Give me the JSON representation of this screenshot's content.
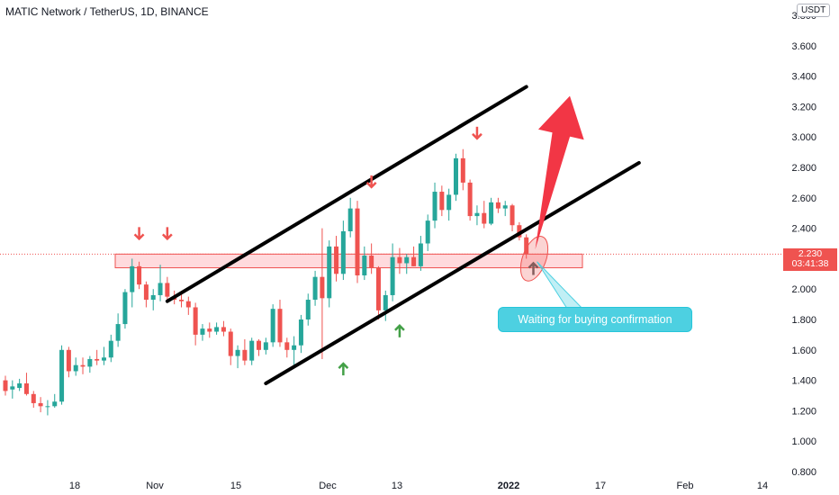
{
  "header": {
    "symbol_title": "MATIC Network / TetherUS, 1D, BINANCE",
    "unit_badge": "USDT"
  },
  "price_tag": {
    "price": "2.230",
    "countdown": "03:41:38"
  },
  "annotation": {
    "callout_text": "Waiting for buying confirmation"
  },
  "colors": {
    "up": "#26a69a",
    "down": "#ef5350",
    "channel": "#000000",
    "zone_fill": "#ffcdd2",
    "callout": "#4dd0e1",
    "big_arrow": "#f23645"
  },
  "chart_data": {
    "type": "candlestick",
    "ylim": [
      0.8,
      4.0
    ],
    "y_ticks": [
      "3.800",
      "3.600",
      "3.400",
      "3.200",
      "3.000",
      "2.800",
      "2.600",
      "2.400",
      "2.200",
      "2.000",
      "1.800",
      "1.600",
      "1.400",
      "1.200",
      "1.000",
      "0.800"
    ],
    "x_ticks": [
      "18",
      "Nov",
      "15",
      "Dec",
      "13",
      "2022",
      "17",
      "Feb",
      "14"
    ],
    "resistance_zone": [
      2.14,
      2.23
    ],
    "channel_upper": {
      "from": {
        "bar": 23,
        "price": 1.92
      },
      "to": {
        "bar": 74,
        "price": 3.33
      }
    },
    "channel_lower": {
      "from": {
        "bar": 37,
        "price": 1.38
      },
      "to": {
        "bar": 90,
        "price": 2.83
      }
    },
    "projection_target": 3.27,
    "ohlc": [
      [
        1.4,
        1.43,
        1.3,
        1.33
      ],
      [
        1.34,
        1.4,
        1.28,
        1.36
      ],
      [
        1.35,
        1.41,
        1.33,
        1.38
      ],
      [
        1.38,
        1.45,
        1.3,
        1.31
      ],
      [
        1.31,
        1.33,
        1.22,
        1.25
      ],
      [
        1.25,
        1.29,
        1.19,
        1.23
      ],
      [
        1.23,
        1.27,
        1.17,
        1.23
      ],
      [
        1.23,
        1.31,
        1.22,
        1.26
      ],
      [
        1.26,
        1.63,
        1.24,
        1.6
      ],
      [
        1.6,
        1.62,
        1.42,
        1.46
      ],
      [
        1.46,
        1.55,
        1.43,
        1.5
      ],
      [
        1.5,
        1.55,
        1.44,
        1.49
      ],
      [
        1.49,
        1.56,
        1.45,
        1.54
      ],
      [
        1.54,
        1.6,
        1.5,
        1.53
      ],
      [
        1.53,
        1.62,
        1.5,
        1.55
      ],
      [
        1.55,
        1.7,
        1.52,
        1.66
      ],
      [
        1.66,
        1.84,
        1.62,
        1.77
      ],
      [
        1.77,
        2.0,
        1.74,
        1.98
      ],
      [
        1.98,
        2.2,
        1.88,
        2.15
      ],
      [
        2.15,
        2.18,
        2.0,
        2.03
      ],
      [
        2.03,
        2.05,
        1.88,
        1.93
      ],
      [
        1.93,
        2.0,
        1.86,
        1.96
      ],
      [
        1.96,
        2.16,
        1.92,
        2.04
      ],
      [
        2.04,
        2.08,
        1.92,
        1.95
      ],
      [
        1.95,
        1.99,
        1.9,
        1.93
      ],
      [
        1.93,
        1.97,
        1.88,
        1.92
      ],
      [
        1.92,
        1.95,
        1.83,
        1.88
      ],
      [
        1.88,
        1.91,
        1.63,
        1.7
      ],
      [
        1.7,
        1.77,
        1.66,
        1.74
      ],
      [
        1.74,
        1.78,
        1.68,
        1.72
      ],
      [
        1.72,
        1.78,
        1.7,
        1.75
      ],
      [
        1.75,
        1.79,
        1.69,
        1.72
      ],
      [
        1.72,
        1.74,
        1.5,
        1.56
      ],
      [
        1.56,
        1.63,
        1.48,
        1.6
      ],
      [
        1.6,
        1.67,
        1.5,
        1.53
      ],
      [
        1.53,
        1.68,
        1.5,
        1.66
      ],
      [
        1.66,
        1.67,
        1.56,
        1.6
      ],
      [
        1.6,
        1.68,
        1.57,
        1.65
      ],
      [
        1.65,
        1.9,
        1.62,
        1.87
      ],
      [
        1.87,
        1.93,
        1.62,
        1.65
      ],
      [
        1.65,
        1.68,
        1.55,
        1.6
      ],
      [
        1.6,
        1.69,
        1.5,
        1.63
      ],
      [
        1.63,
        1.83,
        1.58,
        1.8
      ],
      [
        1.8,
        1.97,
        1.76,
        1.93
      ],
      [
        1.93,
        2.12,
        1.89,
        2.08
      ],
      [
        2.08,
        2.4,
        1.54,
        1.94
      ],
      [
        1.94,
        2.32,
        1.88,
        2.28
      ],
      [
        2.28,
        2.35,
        2.05,
        2.1
      ],
      [
        2.1,
        2.45,
        2.06,
        2.38
      ],
      [
        2.38,
        2.6,
        2.34,
        2.53
      ],
      [
        2.53,
        2.58,
        2.04,
        2.09
      ],
      [
        2.09,
        2.28,
        2.06,
        2.22
      ],
      [
        2.22,
        2.3,
        2.1,
        2.14
      ],
      [
        2.14,
        2.15,
        1.8,
        1.86
      ],
      [
        1.86,
        1.99,
        1.79,
        1.96
      ],
      [
        1.96,
        2.3,
        1.92,
        2.21
      ],
      [
        2.21,
        2.27,
        2.1,
        2.17
      ],
      [
        2.17,
        2.23,
        2.1,
        2.21
      ],
      [
        2.21,
        2.28,
        2.15,
        2.15
      ],
      [
        2.15,
        2.35,
        2.12,
        2.3
      ],
      [
        2.3,
        2.49,
        2.25,
        2.45
      ],
      [
        2.45,
        2.7,
        2.4,
        2.64
      ],
      [
        2.64,
        2.68,
        2.48,
        2.52
      ],
      [
        2.52,
        2.66,
        2.45,
        2.62
      ],
      [
        2.62,
        2.89,
        2.58,
        2.86
      ],
      [
        2.86,
        2.92,
        2.65,
        2.7
      ],
      [
        2.7,
        2.72,
        2.45,
        2.48
      ],
      [
        2.48,
        2.55,
        2.42,
        2.5
      ],
      [
        2.5,
        2.58,
        2.4,
        2.43
      ],
      [
        2.43,
        2.6,
        2.42,
        2.57
      ],
      [
        2.57,
        2.6,
        2.5,
        2.53
      ],
      [
        2.53,
        2.58,
        2.48,
        2.55
      ],
      [
        2.55,
        2.56,
        2.38,
        2.42
      ],
      [
        2.42,
        2.44,
        2.32,
        2.34
      ],
      [
        2.34,
        2.36,
        2.2,
        2.23
      ]
    ]
  }
}
